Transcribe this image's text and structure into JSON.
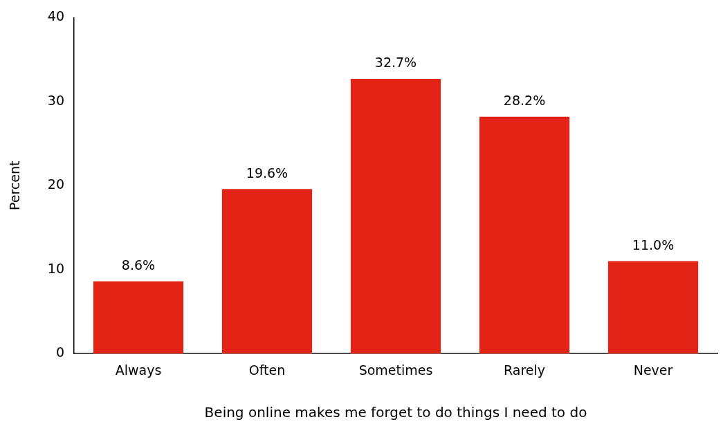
{
  "chart_data": {
    "type": "bar",
    "xlabel": "Being online makes me forget to do things I need to do",
    "ylabel": "Percent",
    "categories": [
      "Always",
      "Often",
      "Sometimes",
      "Rarely",
      "Never"
    ],
    "values": [
      8.6,
      19.6,
      32.7,
      28.2,
      11.0
    ],
    "value_labels": [
      "8.6%",
      "19.6%",
      "32.7%",
      "28.2%",
      "11.0%"
    ],
    "color": "#e32315",
    "ylim": [
      0,
      40
    ],
    "yticks": [
      0,
      10,
      20,
      30,
      40
    ],
    "grid": false,
    "legend": false
  }
}
